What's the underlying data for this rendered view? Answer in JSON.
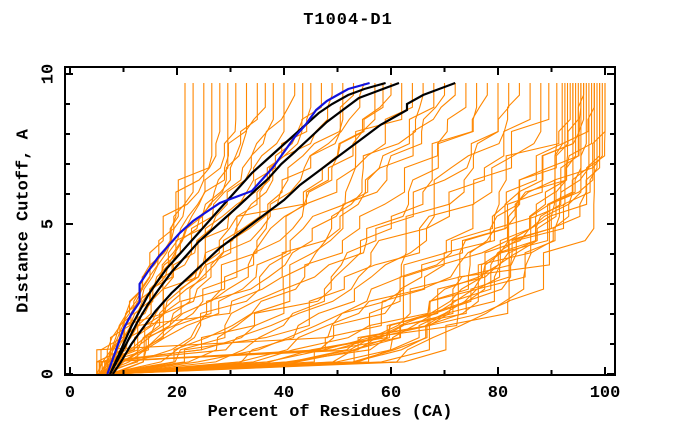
{
  "page": {
    "background": "#ffffff"
  },
  "chart_data": {
    "type": "line",
    "title": "T1004-D1",
    "xlabel": "Percent of Residues (CA)",
    "ylabel": "Distance Cutoff, A",
    "xlim": [
      0,
      100
    ],
    "ylim": [
      0,
      10
    ],
    "x_major_ticks": [
      0,
      20,
      40,
      60,
      80,
      100
    ],
    "x_minor_tick_step": 10,
    "y_major_ticks": [
      0,
      5,
      10
    ],
    "y_minor_tick_step": 1,
    "grid": false,
    "legend": "none",
    "frame_color": "#000000",
    "text_color": "#000000",
    "curve_y_max": 9.7,
    "series_colors": {
      "orange_curves": "#ff8700",
      "black_curves": "#000000",
      "blue_curve": "#1212dd"
    },
    "blue_curve": {
      "color": "#1212dd",
      "width": 2.2,
      "points": [
        [
          7,
          0
        ],
        [
          8,
          0.5
        ],
        [
          9,
          1.0
        ],
        [
          10,
          1.5
        ],
        [
          11.5,
          2.0
        ],
        [
          13,
          2.4
        ],
        [
          13,
          3.0
        ],
        [
          14.5,
          3.4
        ],
        [
          16.5,
          3.9
        ],
        [
          18.5,
          4.3
        ],
        [
          20.5,
          4.7
        ],
        [
          23,
          5.1
        ],
        [
          25.5,
          5.4
        ],
        [
          28,
          5.7
        ],
        [
          31,
          5.9
        ],
        [
          34,
          6.1
        ],
        [
          36,
          6.5
        ],
        [
          38,
          6.9
        ],
        [
          40,
          7.4
        ],
        [
          42,
          7.9
        ],
        [
          44,
          8.3
        ],
        [
          46,
          8.8
        ],
        [
          48,
          9.1
        ],
        [
          50,
          9.3
        ],
        [
          52,
          9.5
        ],
        [
          54,
          9.6
        ],
        [
          56,
          9.7
        ]
      ]
    },
    "black_curves": [
      {
        "color": "#000000",
        "width": 2.2,
        "points": [
          [
            7.5,
            0
          ],
          [
            8.5,
            0.4
          ],
          [
            10,
            1.0
          ],
          [
            11.5,
            1.6
          ],
          [
            13,
            2.1
          ],
          [
            14.5,
            2.6
          ],
          [
            16,
            3.0
          ],
          [
            18,
            3.5
          ],
          [
            20,
            3.9
          ],
          [
            22,
            4.3
          ],
          [
            24.5,
            4.8
          ],
          [
            27,
            5.3
          ],
          [
            29.5,
            5.8
          ],
          [
            32,
            6.3
          ],
          [
            34,
            6.7
          ],
          [
            36.5,
            7.1
          ],
          [
            39,
            7.5
          ],
          [
            41.5,
            7.9
          ],
          [
            44,
            8.3
          ],
          [
            46.5,
            8.7
          ],
          [
            49,
            9.0
          ],
          [
            52,
            9.3
          ],
          [
            55,
            9.5
          ],
          [
            59,
            9.7
          ]
        ]
      },
      {
        "color": "#000000",
        "width": 2.2,
        "points": [
          [
            7.5,
            0
          ],
          [
            9,
            0.5
          ],
          [
            10.5,
            1.0
          ],
          [
            12.5,
            1.7
          ],
          [
            14.5,
            2.3
          ],
          [
            16.5,
            2.8
          ],
          [
            19,
            3.4
          ],
          [
            21.5,
            3.9
          ],
          [
            24,
            4.4
          ],
          [
            26.5,
            4.8
          ],
          [
            29,
            5.2
          ],
          [
            31.5,
            5.6
          ],
          [
            34.5,
            6.1
          ],
          [
            37,
            6.5
          ],
          [
            39.5,
            7.0
          ],
          [
            42,
            7.4
          ],
          [
            45,
            7.9
          ],
          [
            48,
            8.4
          ],
          [
            51,
            8.8
          ],
          [
            54,
            9.2
          ],
          [
            57,
            9.4
          ],
          [
            61.5,
            9.7
          ]
        ]
      },
      {
        "color": "#000000",
        "width": 2.2,
        "points": [
          [
            8,
            0
          ],
          [
            9.5,
            0.4
          ],
          [
            11.5,
            1.0
          ],
          [
            13.5,
            1.5
          ],
          [
            16,
            2.1
          ],
          [
            19,
            2.7
          ],
          [
            22,
            3.2
          ],
          [
            25,
            3.7
          ],
          [
            28,
            4.2
          ],
          [
            31,
            4.6
          ],
          [
            34,
            5.0
          ],
          [
            37,
            5.4
          ],
          [
            40,
            5.8
          ],
          [
            43,
            6.3
          ],
          [
            46,
            6.7
          ],
          [
            49,
            7.1
          ],
          [
            52,
            7.5
          ],
          [
            55,
            7.9
          ],
          [
            58,
            8.3
          ],
          [
            61,
            8.6
          ],
          [
            63,
            8.8
          ],
          [
            63,
            9.0
          ],
          [
            66,
            9.3
          ],
          [
            69,
            9.5
          ],
          [
            72,
            9.7
          ]
        ]
      }
    ],
    "orange_curves": {
      "color": "#ff8700",
      "width": 1.1,
      "count": 62,
      "param_format": [
        "start_x_at_y0",
        "top_x_at_ymax",
        "shape_exponent",
        "saturate_t",
        "seed"
      ],
      "params": [
        [
          5.5,
          21.5,
          1.15,
          0.55,
          101
        ],
        [
          6,
          23,
          1.05,
          0.62,
          102
        ],
        [
          6.5,
          25,
          1.25,
          0.66,
          103
        ],
        [
          5,
          26.5,
          1.0,
          0.74,
          104
        ],
        [
          6.5,
          28,
          1.1,
          0.8,
          105
        ],
        [
          5.5,
          29.5,
          0.95,
          0.7,
          106
        ],
        [
          7,
          31,
          1.05,
          0.84,
          107
        ],
        [
          6,
          33,
          0.9,
          0.8,
          108
        ],
        [
          5.5,
          35,
          0.95,
          0.86,
          111
        ],
        [
          6.5,
          36.5,
          1.15,
          0.9,
          112
        ],
        [
          7,
          38,
          1.0,
          0.88,
          113
        ],
        [
          6,
          40,
          0.85,
          0.82,
          114
        ],
        [
          7.5,
          42,
          1.0,
          0.94,
          115
        ],
        [
          5,
          43.5,
          0.9,
          0.86,
          116
        ],
        [
          8,
          45,
          0.78,
          0.9,
          117
        ],
        [
          6,
          47,
          0.9,
          0.9,
          121
        ],
        [
          7,
          49,
          0.8,
          0.94,
          122
        ],
        [
          5.5,
          51,
          0.92,
          0.88,
          123
        ],
        [
          8,
          53,
          0.72,
          0.95,
          124
        ],
        [
          6.5,
          55,
          0.85,
          0.97,
          125
        ],
        [
          7.5,
          57,
          0.75,
          0.9,
          126
        ],
        [
          5,
          58.5,
          0.68,
          0.96,
          127
        ],
        [
          6,
          60,
          0.8,
          0.94,
          131
        ],
        [
          7,
          62,
          0.62,
          0.9,
          132
        ],
        [
          5.5,
          64,
          0.7,
          0.97,
          133
        ],
        [
          8,
          66,
          0.58,
          0.93,
          134
        ],
        [
          6.5,
          68,
          0.74,
          0.9,
          135
        ],
        [
          7.5,
          70,
          0.52,
          0.95,
          136
        ],
        [
          5,
          72,
          0.66,
          0.98,
          137
        ],
        [
          6,
          74,
          0.6,
          0.92,
          138
        ],
        [
          6.5,
          76,
          0.52,
          0.9,
          141
        ],
        [
          7,
          78,
          0.46,
          0.94,
          142
        ],
        [
          5.5,
          80,
          0.55,
          0.86,
          143
        ],
        [
          8,
          82,
          0.42,
          0.9,
          144
        ],
        [
          6,
          84,
          0.5,
          0.94,
          145
        ],
        [
          7.5,
          86,
          0.45,
          0.86,
          146
        ],
        [
          5,
          88,
          0.38,
          0.9,
          147
        ],
        [
          6.5,
          89.5,
          0.48,
          0.94,
          148
        ],
        [
          6,
          91,
          0.3,
          0.8,
          151
        ],
        [
          7,
          92,
          0.34,
          0.84,
          152
        ],
        [
          5.5,
          93,
          0.28,
          0.74,
          153
        ],
        [
          8,
          94,
          0.32,
          0.88,
          154
        ],
        [
          6.5,
          95,
          0.26,
          0.78,
          155
        ],
        [
          7.5,
          96,
          0.3,
          0.84,
          156
        ],
        [
          5,
          97,
          0.27,
          0.68,
          157
        ],
        [
          6,
          98,
          0.33,
          0.88,
          158
        ],
        [
          7,
          99,
          0.25,
          0.78,
          159
        ],
        [
          5.5,
          100,
          0.3,
          0.84,
          160
        ],
        [
          8,
          92.5,
          0.23,
          0.72,
          161
        ],
        [
          6,
          94.5,
          0.28,
          0.8,
          162
        ],
        [
          7,
          96.5,
          0.24,
          0.84,
          163
        ],
        [
          5.5,
          98.5,
          0.3,
          0.74,
          164
        ],
        [
          8,
          99.5,
          0.26,
          0.8,
          165
        ],
        [
          6.5,
          93.5,
          0.35,
          0.9,
          166
        ],
        [
          7.5,
          95.5,
          0.22,
          0.66,
          167
        ],
        [
          5,
          97.5,
          0.28,
          0.84,
          168
        ],
        [
          6,
          99,
          0.24,
          0.74,
          169
        ],
        [
          7,
          100,
          0.32,
          0.8,
          170
        ],
        [
          6.5,
          94,
          0.2,
          0.6,
          171
        ],
        [
          5.5,
          96,
          0.36,
          0.92,
          172
        ],
        [
          7.5,
          98,
          0.21,
          0.62,
          173
        ],
        [
          6,
          95.5,
          0.4,
          0.88,
          174
        ]
      ]
    }
  }
}
